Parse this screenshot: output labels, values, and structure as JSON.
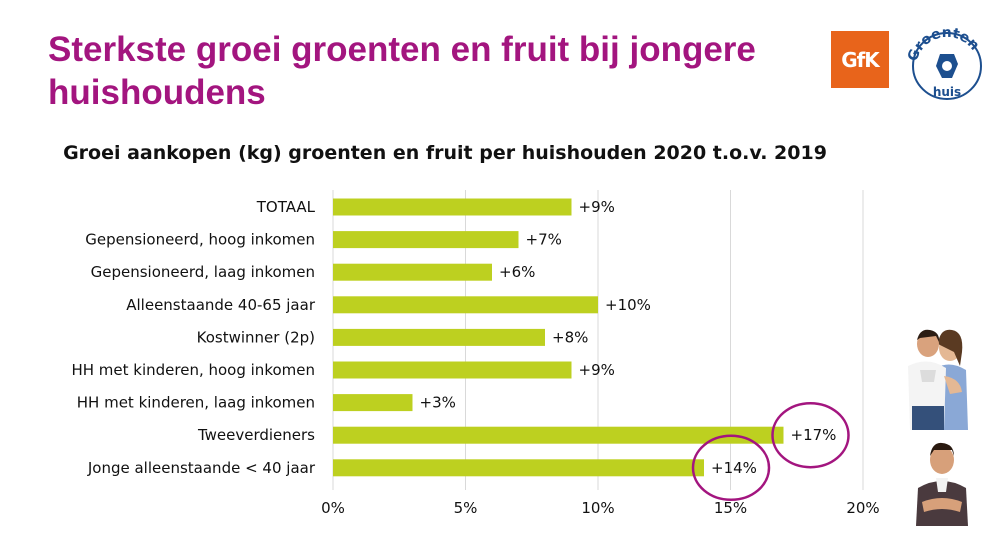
{
  "slide": {
    "title": "Sterkste groei groenten en fruit bij jongere huishoudens",
    "brand_color": "#a3157f"
  },
  "logos": {
    "gfk": {
      "text": "GfK",
      "color": "#e8641b"
    },
    "groenten_fruit_huis": {
      "text": "Groenten Fruit Huis",
      "icon": "groenten-fruit-huis-logo"
    }
  },
  "photos": [
    {
      "name": "couple-photo",
      "icon": "couple-photo"
    },
    {
      "name": "young-man-photo",
      "icon": "young-man-photo"
    }
  ],
  "chart_data": {
    "type": "bar",
    "orientation": "horizontal",
    "title": "Groei aankopen (kg) groenten en fruit per huishouden 2020 t.o.v. 2019",
    "categories": [
      "TOTAAL",
      "Gepensioneerd, hoog inkomen",
      "Gepensioneerd, laag inkomen",
      "Alleenstaande 40-65 jaar",
      "Kostwinner (2p)",
      "HH met kinderen, hoog inkomen",
      "HH met kinderen, laag inkomen",
      "Tweeverdieners",
      "Jonge alleenstaande < 40 jaar"
    ],
    "values": [
      9,
      7,
      6,
      10,
      8,
      9,
      3,
      17,
      14
    ],
    "data_labels": [
      "+9%",
      "+7%",
      "+6%",
      "+10%",
      "+8%",
      "+9%",
      "+3%",
      "+17%",
      "+14%"
    ],
    "x_ticks": [
      "0%",
      "5%",
      "10%",
      "15%",
      "20%"
    ],
    "xlim": [
      0,
      20
    ],
    "grid": true,
    "bar_color": "#bdd020",
    "grid_color": "#d9d9d9",
    "highlight_color": "#a3157f",
    "highlighted": [
      "Tweeverdieners",
      "Jonge alleenstaande < 40 jaar"
    ]
  }
}
